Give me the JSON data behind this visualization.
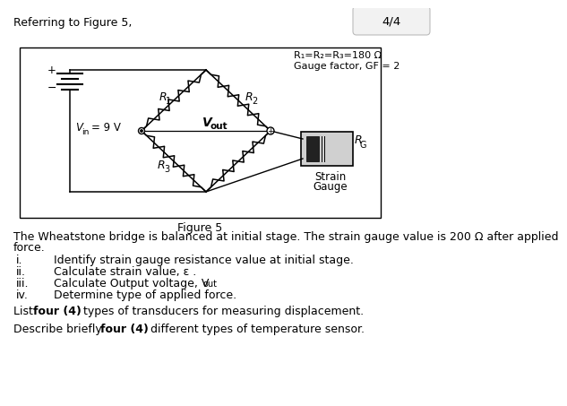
{
  "page_num": "4/4",
  "header_text": "Referring to Figure 5,",
  "figure_caption": "Figure 5",
  "info_line1": "R₁=R₂=R₃=180 Ω",
  "info_line2": "Gauge factor, GF = 2",
  "body_text_1": "The Wheatstone bridge is balanced at initial stage. The strain gauge value is 200 Ω after applied",
  "body_text_2": "force.",
  "q_i": "Identify strain gauge resistance value at initial stage.",
  "q_ii": "Calculate strain value, ε .",
  "q_iii_pre": "Calculate Output voltage, V",
  "q_iii_sub": "out",
  "q_iv": "Determine type of applied force.",
  "bg_color": "#ffffff"
}
